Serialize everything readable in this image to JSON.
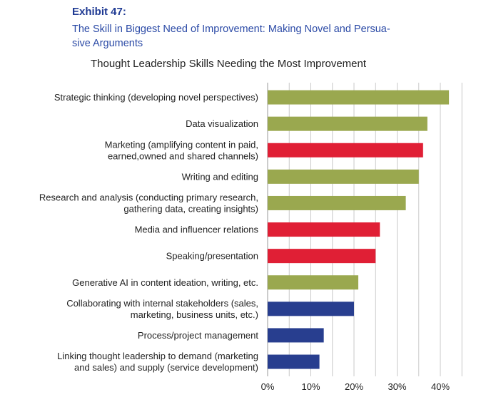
{
  "header": {
    "exhibit": "Exhibit 47:",
    "subtitle_line1": "The Skill in Biggest Need of Improvement: Making Novel and Persua-",
    "subtitle_line2": "sive Arguments"
  },
  "chart_data": {
    "type": "bar",
    "orientation": "horizontal",
    "title": "Thought Leadership Skills Needing the Most Improvement",
    "xlabel": "",
    "ylabel": "",
    "xlim": [
      0,
      45
    ],
    "xticks": [
      0,
      10,
      20,
      30,
      40
    ],
    "xtick_labels": [
      "0%",
      "10%",
      "20%",
      "30%",
      "40%"
    ],
    "grid": true,
    "categories": [
      {
        "lines": [
          "Strategic thinking (developing novel perspectives)"
        ],
        "value": 42,
        "color": "#9aa84f"
      },
      {
        "lines": [
          "Data visualization"
        ],
        "value": 37,
        "color": "#9aa84f"
      },
      {
        "lines": [
          "Marketing (amplifying content in paid,",
          "earned,owned and shared channels)"
        ],
        "value": 36,
        "color": "#e01f35"
      },
      {
        "lines": [
          "Writing and editing"
        ],
        "value": 35,
        "color": "#9aa84f"
      },
      {
        "lines": [
          "Research and analysis (conducting primary research,",
          "gathering data, creating insights)"
        ],
        "value": 32,
        "color": "#9aa84f"
      },
      {
        "lines": [
          "Media and influencer relations"
        ],
        "value": 26,
        "color": "#e01f35"
      },
      {
        "lines": [
          "Speaking/presentation"
        ],
        "value": 25,
        "color": "#e01f35"
      },
      {
        "lines": [
          "Generative AI in content ideation, writing, etc."
        ],
        "value": 21,
        "color": "#9aa84f"
      },
      {
        "lines": [
          "Collaborating with internal stakeholders (sales,",
          "marketing, business units, etc.)"
        ],
        "value": 20,
        "color": "#283e8f"
      },
      {
        "lines": [
          "Process/project management"
        ],
        "value": 13,
        "color": "#283e8f"
      },
      {
        "lines": [
          "Linking thought leadership to demand (marketing",
          "and sales) and supply (service development)"
        ],
        "value": 12,
        "color": "#283e8f"
      }
    ]
  }
}
